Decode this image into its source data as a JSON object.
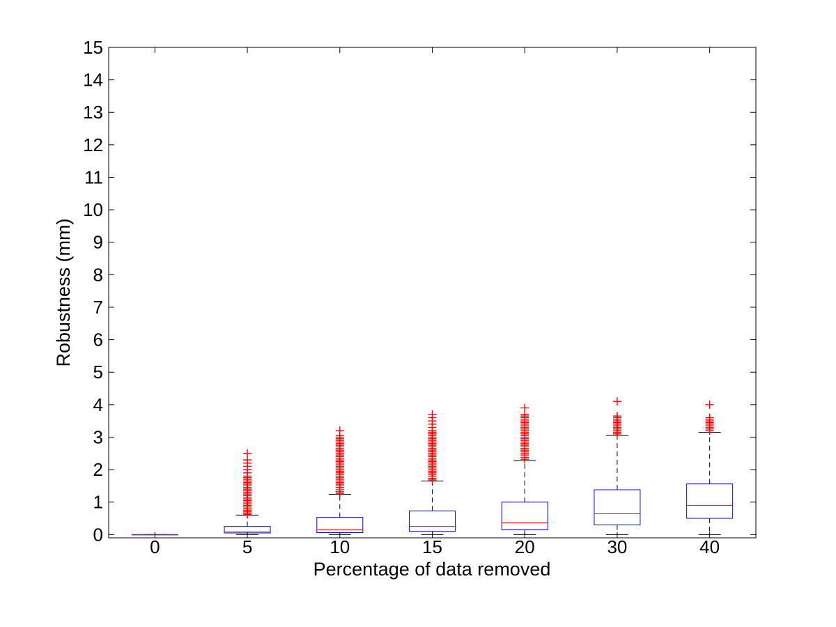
{
  "chart_data": {
    "type": "box",
    "title": "",
    "xlabel": "Percentage of data removed",
    "ylabel": "Robustness (mm)",
    "categories": [
      "0",
      "5",
      "10",
      "15",
      "20",
      "30",
      "40"
    ],
    "ylim": [
      -0.1,
      15
    ],
    "yticks": [
      0,
      1,
      2,
      3,
      4,
      5,
      6,
      7,
      8,
      9,
      10,
      11,
      12,
      13,
      14,
      15
    ],
    "grid": false,
    "colors": {
      "box": "#0000ff",
      "median": "#ff0000",
      "whisker": "#000000",
      "outlier": "#ff0000"
    },
    "boxes": [
      {
        "category": "0",
        "whisker_low": 0.0,
        "q1": 0.0,
        "median": 0.0,
        "q3": 0.0,
        "whisker_high": 0.0,
        "outliers": []
      },
      {
        "category": "5",
        "whisker_low": 0.0,
        "q1": 0.05,
        "median": 0.08,
        "q3": 0.25,
        "whisker_high": 0.6,
        "outliers": [
          0.62,
          0.65,
          0.7,
          0.75,
          0.8,
          0.85,
          0.9,
          0.95,
          1.0,
          1.05,
          1.1,
          1.15,
          1.2,
          1.25,
          1.3,
          1.35,
          1.4,
          1.45,
          1.5,
          1.55,
          1.6,
          1.65,
          1.7,
          1.75,
          1.8,
          1.9,
          2.0,
          2.1,
          2.2,
          2.3,
          2.5
        ]
      },
      {
        "category": "10",
        "whisker_low": 0.0,
        "q1": 0.06,
        "median": 0.15,
        "q3": 0.53,
        "whisker_high": 1.24,
        "outliers": [
          1.27,
          1.32,
          1.38,
          1.45,
          1.5,
          1.55,
          1.6,
          1.65,
          1.7,
          1.75,
          1.8,
          1.85,
          1.9,
          1.95,
          2.0,
          2.05,
          2.1,
          2.15,
          2.2,
          2.25,
          2.3,
          2.35,
          2.4,
          2.45,
          2.5,
          2.55,
          2.6,
          2.65,
          2.7,
          2.75,
          2.8,
          2.85,
          2.9,
          2.95,
          3.0,
          3.05,
          3.2
        ]
      },
      {
        "category": "15",
        "whisker_low": 0.0,
        "q1": 0.1,
        "median": 0.25,
        "q3": 0.73,
        "whisker_high": 1.65,
        "outliers": [
          1.68,
          1.73,
          1.8,
          1.85,
          1.9,
          1.95,
          2.0,
          2.05,
          2.1,
          2.15,
          2.2,
          2.25,
          2.3,
          2.35,
          2.4,
          2.45,
          2.5,
          2.55,
          2.6,
          2.65,
          2.7,
          2.75,
          2.8,
          2.85,
          2.9,
          2.95,
          3.0,
          3.05,
          3.1,
          3.15,
          3.2,
          3.3,
          3.4,
          3.5,
          3.6,
          3.7
        ]
      },
      {
        "category": "20",
        "whisker_low": 0.0,
        "q1": 0.15,
        "median": 0.36,
        "q3": 1.0,
        "whisker_high": 2.28,
        "outliers": [
          2.32,
          2.38,
          2.45,
          2.5,
          2.55,
          2.6,
          2.65,
          2.7,
          2.75,
          2.8,
          2.85,
          2.9,
          2.95,
          3.0,
          3.05,
          3.1,
          3.15,
          3.2,
          3.25,
          3.3,
          3.35,
          3.4,
          3.45,
          3.5,
          3.55,
          3.6,
          3.65,
          3.7,
          3.9
        ]
      },
      {
        "category": "30",
        "whisker_low": 0.0,
        "q1": 0.3,
        "median": 0.64,
        "q3": 1.38,
        "whisker_high": 3.05,
        "outliers": [
          3.1,
          3.15,
          3.2,
          3.25,
          3.3,
          3.35,
          3.4,
          3.45,
          3.5,
          3.55,
          3.6,
          3.65,
          4.1
        ]
      },
      {
        "category": "40",
        "whisker_low": 0.0,
        "q1": 0.5,
        "median": 0.9,
        "q3": 1.56,
        "whisker_high": 3.15,
        "outliers": [
          3.2,
          3.25,
          3.3,
          3.35,
          3.4,
          3.45,
          3.5,
          3.55,
          3.6,
          4.0
        ]
      }
    ]
  }
}
